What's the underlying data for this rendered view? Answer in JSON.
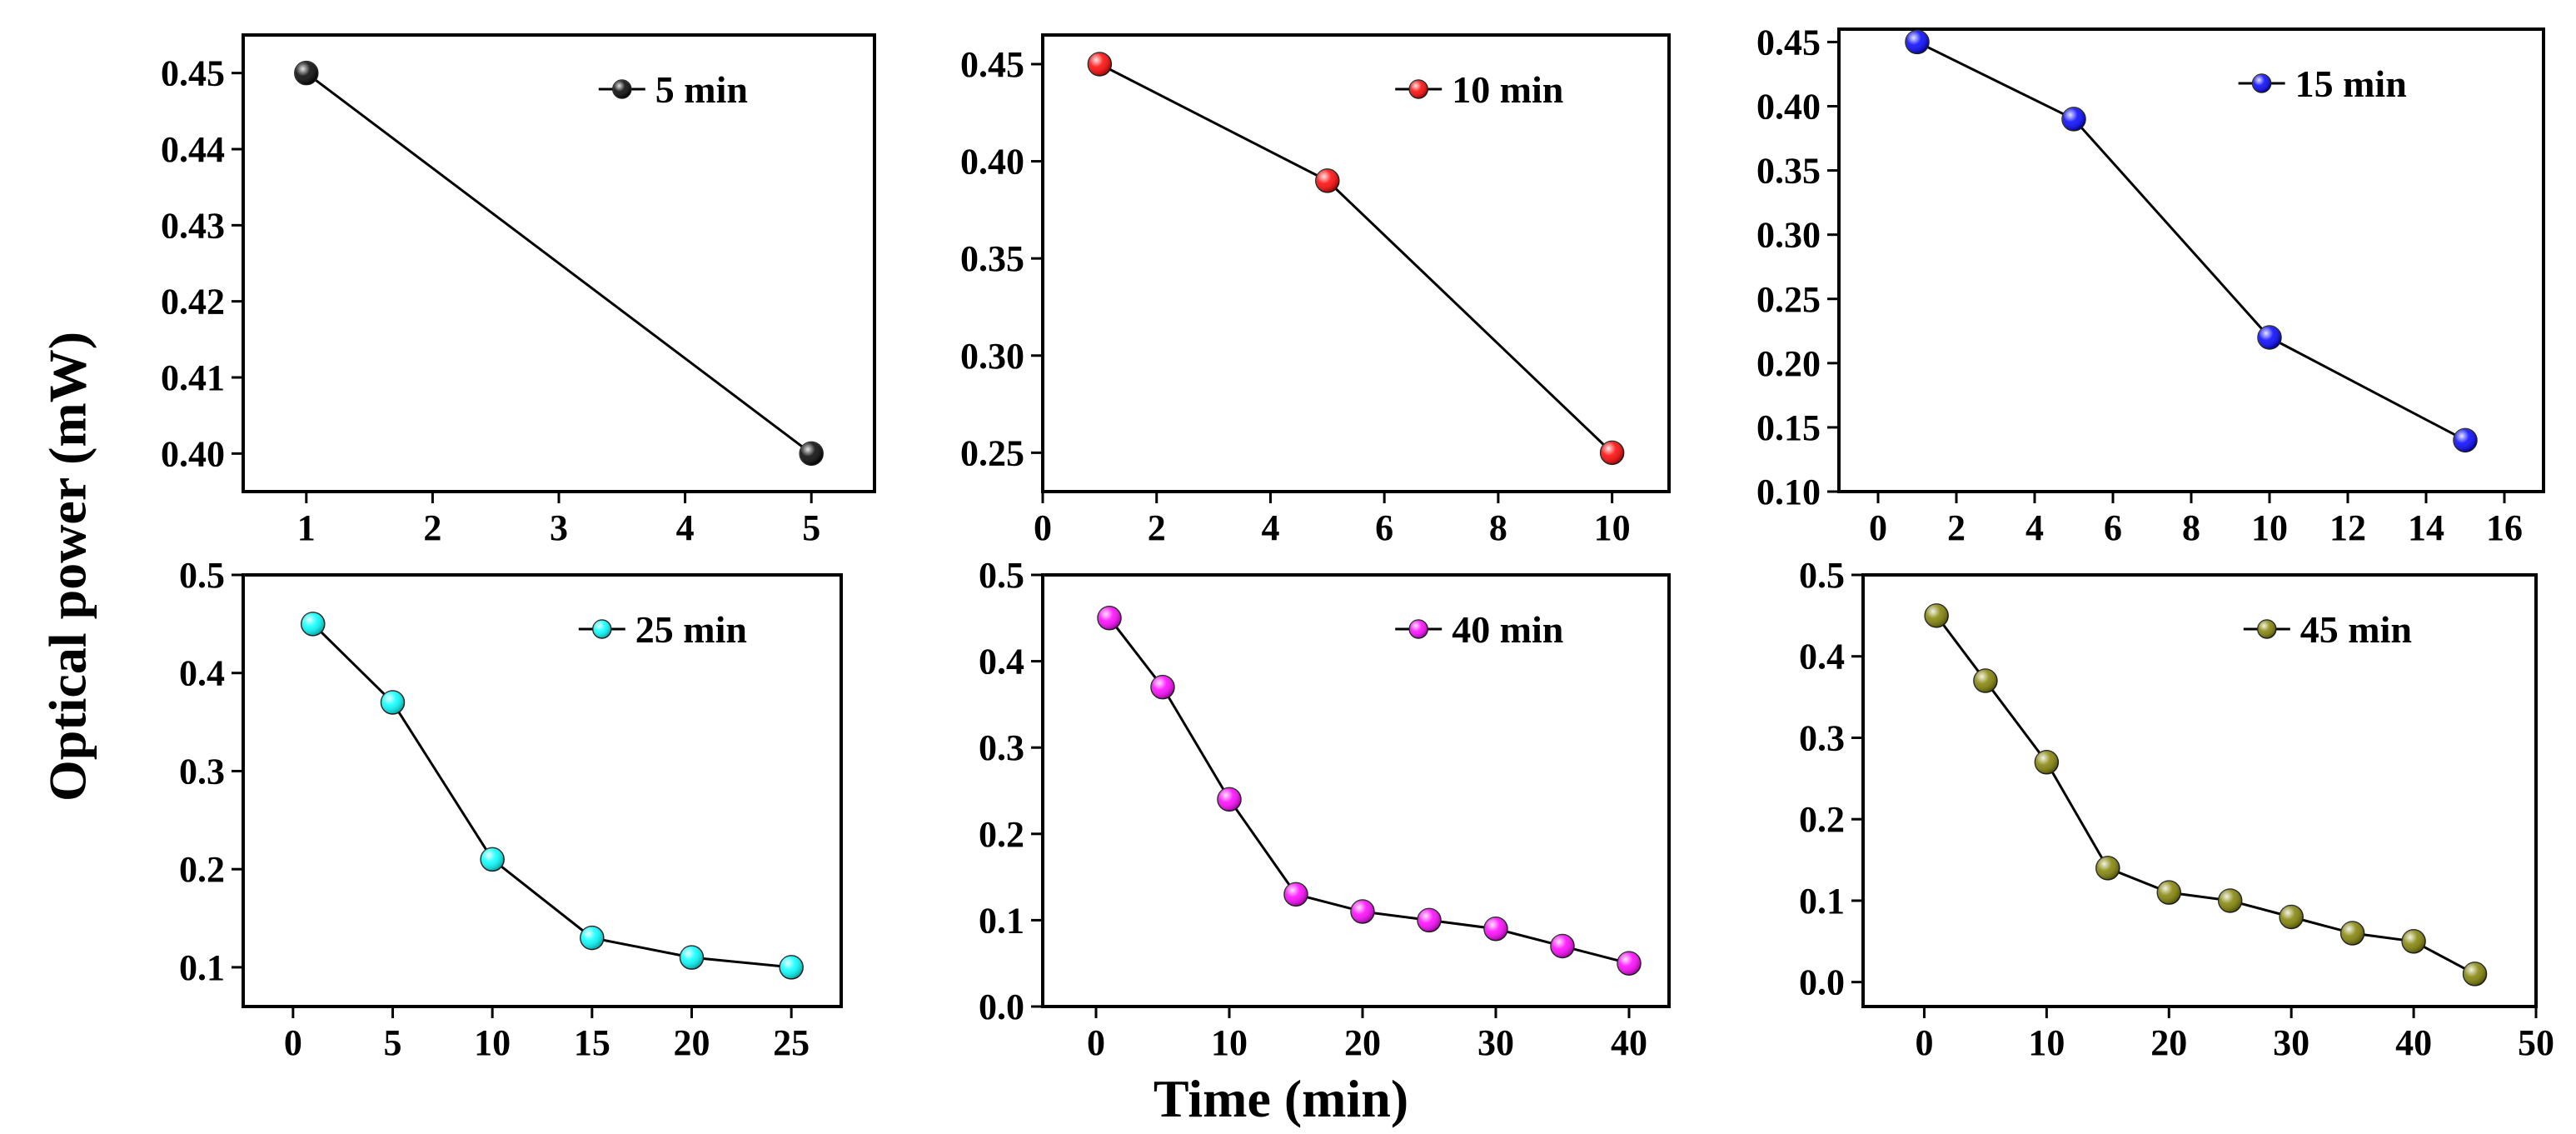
{
  "figure": {
    "ylabel": "Optical power (mW)",
    "xlabel": "Time (min)"
  },
  "chart_data": [
    {
      "type": "line",
      "series": [
        {
          "name": "5 min",
          "color": "#000000",
          "x": [
            1,
            5
          ],
          "y": [
            0.45,
            0.4
          ]
        }
      ],
      "xlim": [
        0.5,
        5.5
      ],
      "ylim": [
        0.395,
        0.455
      ],
      "xticks": [
        "1",
        "2",
        "3",
        "4",
        "5"
      ],
      "xtick_values": [
        1,
        2,
        3,
        4,
        5
      ],
      "yticks": [
        "0.40",
        "0.41",
        "0.42",
        "0.43",
        "0.44",
        "0.45"
      ],
      "ytick_values": [
        0.4,
        0.41,
        0.42,
        0.43,
        0.44,
        0.45
      ],
      "legend_position": "top-right"
    },
    {
      "type": "line",
      "series": [
        {
          "name": "10 min",
          "color": "#ff0000",
          "x": [
            1,
            5,
            10
          ],
          "y": [
            0.45,
            0.39,
            0.25
          ]
        }
      ],
      "xlim": [
        0,
        11
      ],
      "ylim": [
        0.23,
        0.465
      ],
      "xticks": [
        "0",
        "2",
        "4",
        "6",
        "8",
        "10"
      ],
      "xtick_values": [
        0,
        2,
        4,
        6,
        8,
        10
      ],
      "yticks": [
        "0.25",
        "0.30",
        "0.35",
        "0.40",
        "0.45"
      ],
      "ytick_values": [
        0.25,
        0.3,
        0.35,
        0.4,
        0.45
      ],
      "legend_position": "top-right"
    },
    {
      "type": "line",
      "series": [
        {
          "name": "15 min",
          "color": "#0000ff",
          "x": [
            1,
            5,
            10,
            15
          ],
          "y": [
            0.45,
            0.39,
            0.22,
            0.14
          ]
        }
      ],
      "xlim": [
        -1,
        17
      ],
      "ylim": [
        0.1,
        0.46
      ],
      "xticks": [
        "0",
        "2",
        "4",
        "6",
        "8",
        "10",
        "12",
        "14",
        "16"
      ],
      "xtick_values": [
        0,
        2,
        4,
        6,
        8,
        10,
        12,
        14,
        16
      ],
      "yticks": [
        "0.10",
        "0.15",
        "0.20",
        "0.25",
        "0.30",
        "0.35",
        "0.40",
        "0.45"
      ],
      "ytick_values": [
        0.1,
        0.15,
        0.2,
        0.25,
        0.3,
        0.35,
        0.4,
        0.45
      ],
      "legend_position": "top-right"
    },
    {
      "type": "line",
      "series": [
        {
          "name": "25 min",
          "color": "#00ffff",
          "x": [
            1,
            5,
            10,
            15,
            20,
            25
          ],
          "y": [
            0.45,
            0.37,
            0.21,
            0.13,
            0.11,
            0.1
          ]
        }
      ],
      "xlim": [
        -2.5,
        27.5
      ],
      "ylim": [
        0.06,
        0.5
      ],
      "xticks": [
        "0",
        "5",
        "10",
        "15",
        "20",
        "25"
      ],
      "xtick_values": [
        0,
        5,
        10,
        15,
        20,
        25
      ],
      "yticks": [
        "0.1",
        "0.2",
        "0.3",
        "0.4",
        "0.5"
      ],
      "ytick_values": [
        0.1,
        0.2,
        0.3,
        0.4,
        0.5
      ],
      "legend_position": "top-right"
    },
    {
      "type": "line",
      "series": [
        {
          "name": "40 min",
          "color": "#ff00ff",
          "x": [
            1,
            5,
            10,
            15,
            20,
            25,
            30,
            35,
            40
          ],
          "y": [
            0.45,
            0.37,
            0.24,
            0.13,
            0.11,
            0.1,
            0.09,
            0.07,
            0.05
          ]
        }
      ],
      "xlim": [
        -4,
        43
      ],
      "ylim": [
        0.0,
        0.5
      ],
      "xticks": [
        "0",
        "10",
        "20",
        "30",
        "40"
      ],
      "xtick_values": [
        0,
        10,
        20,
        30,
        40
      ],
      "yticks": [
        "0.0",
        "0.1",
        "0.2",
        "0.3",
        "0.4",
        "0.5"
      ],
      "ytick_values": [
        0.0,
        0.1,
        0.2,
        0.3,
        0.4,
        0.5
      ],
      "legend_position": "top-right"
    },
    {
      "type": "line",
      "series": [
        {
          "name": "45 min",
          "color": "#808000",
          "x": [
            1,
            5,
            10,
            15,
            20,
            25,
            30,
            35,
            40,
            45
          ],
          "y": [
            0.45,
            0.37,
            0.27,
            0.14,
            0.11,
            0.1,
            0.08,
            0.06,
            0.05,
            0.01
          ]
        }
      ],
      "xlim": [
        -5,
        50
      ],
      "ylim": [
        -0.03,
        0.5
      ],
      "xticks": [
        "0",
        "10",
        "20",
        "30",
        "40",
        "50"
      ],
      "xtick_values": [
        0,
        10,
        20,
        30,
        40,
        50
      ],
      "yticks": [
        "0.0",
        "0.1",
        "0.2",
        "0.3",
        "0.4",
        "0.5"
      ],
      "ytick_values": [
        0.0,
        0.1,
        0.2,
        0.3,
        0.4,
        0.5
      ],
      "legend_position": "top-right"
    }
  ]
}
